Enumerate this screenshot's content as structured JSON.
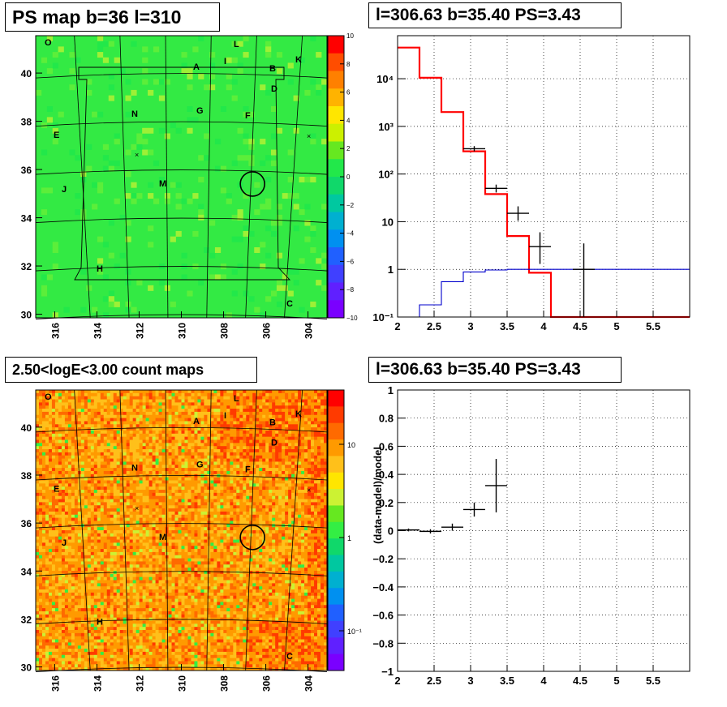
{
  "panels": {
    "top_left_title": "PS map b=36 l=310",
    "top_right_title": "l=306.63 b=35.40 PS=3.43",
    "bottom_left_title": "2.50<logE<3.00 count maps",
    "bottom_right_title": "l=306.63 b=35.40 PS=3.43"
  },
  "chart_data": [
    {
      "type": "heatmap",
      "title": "PS map b=36 l=310",
      "x_ticks": [
        "316",
        "314",
        "312",
        "310",
        "308",
        "306",
        "304"
      ],
      "y_ticks": [
        "30",
        "32",
        "34",
        "36",
        "38",
        "40"
      ],
      "colorbar_ticks": [
        "10",
        "8",
        "6",
        "4",
        "2",
        "0",
        "−2",
        "−4",
        "−6",
        "−8",
        "−10"
      ],
      "colorbar_range": [
        -10,
        10
      ],
      "background_value": 0,
      "region_labels": [
        "O",
        "L",
        "I",
        "A",
        "B",
        "K",
        "D",
        "N",
        "G",
        "F",
        "E",
        "J",
        "M",
        "H",
        "C"
      ],
      "marked_source": {
        "l": 306.63,
        "b": 35.4
      }
    },
    {
      "type": "line",
      "title": "l=306.63 b=35.40 PS=3.43",
      "y_scale": "log",
      "xlim": [
        2,
        6
      ],
      "ylim": [
        0.1,
        80000
      ],
      "x_ticks": [
        "2",
        "2.5",
        "3",
        "3.5",
        "4",
        "4.5",
        "5",
        "5.5"
      ],
      "y_ticks": [
        "10⁻¹",
        "1",
        "10",
        "10²",
        "10³",
        "10⁴"
      ],
      "grid": true,
      "series": [
        {
          "color": "#ff0000",
          "style": "step",
          "edges": [
            2.0,
            2.3,
            2.6,
            2.9,
            3.2,
            3.5,
            3.8,
            4.1,
            4.4,
            4.7,
            5.0,
            5.3,
            5.6,
            5.9,
            6.0
          ],
          "values": [
            45000,
            10500,
            2000,
            300,
            38,
            5,
            0.85,
            0.1,
            0.1,
            0.1,
            0.1,
            0.1,
            0.1,
            0.1
          ]
        },
        {
          "color": "#0000cc",
          "style": "step",
          "edges": [
            2.0,
            2.3,
            2.6,
            2.9,
            3.2,
            3.5,
            3.8,
            4.1,
            4.4,
            4.7,
            5.0,
            5.3,
            5.6,
            5.9,
            6.0
          ],
          "values": [
            0.05,
            0.18,
            0.55,
            0.88,
            0.97,
            1.0,
            1.0,
            1.0,
            1.0,
            1.0,
            1.0,
            1.0,
            1.0,
            1.0
          ]
        },
        {
          "color": "#000000",
          "style": "errorbars",
          "points": [
            {
              "x": 3.05,
              "y": 340,
              "xerr": 0.15,
              "ylo": 300,
              "yhi": 385
            },
            {
              "x": 3.35,
              "y": 50,
              "xerr": 0.15,
              "ylo": 41,
              "yhi": 60
            },
            {
              "x": 3.65,
              "y": 15,
              "xerr": 0.15,
              "ylo": 10.5,
              "yhi": 21
            },
            {
              "x": 3.95,
              "y": 3,
              "xerr": 0.15,
              "ylo": 1.3,
              "yhi": 6
            },
            {
              "x": 4.55,
              "y": 1,
              "xerr": 0.15,
              "ylo": 0.1,
              "yhi": 3.5
            }
          ]
        }
      ]
    },
    {
      "type": "heatmap",
      "title": "2.50<logE<3.00 count maps",
      "x_ticks": [
        "316",
        "314",
        "312",
        "310",
        "308",
        "306",
        "304"
      ],
      "y_ticks": [
        "30",
        "32",
        "34",
        "36",
        "38",
        "40"
      ],
      "colorbar_ticks": [
        "10",
        "1",
        "10⁻¹"
      ],
      "colorbar_scale": "log",
      "region_labels": [
        "O",
        "L",
        "I",
        "A",
        "B",
        "K",
        "D",
        "N",
        "G",
        "F",
        "E",
        "J",
        "M",
        "H",
        "C"
      ],
      "marked_source": {
        "l": 306.63,
        "b": 35.4
      }
    },
    {
      "type": "scatter",
      "title": "l=306.63 b=35.40 PS=3.43",
      "ylabel": "(data-model)/model",
      "xlim": [
        2,
        6
      ],
      "ylim": [
        -1,
        1
      ],
      "x_ticks": [
        "2",
        "2.5",
        "3",
        "3.5",
        "4",
        "4.5",
        "5",
        "5.5"
      ],
      "y_ticks": [
        "−1",
        "−0.8",
        "−0.6",
        "−0.4",
        "−0.2",
        "0",
        "0.2",
        "0.4",
        "0.6",
        "0.8",
        "1"
      ],
      "grid": true,
      "points": [
        {
          "x": 2.15,
          "y": 0.005,
          "xerr": 0.15,
          "yerr": 0.01
        },
        {
          "x": 2.45,
          "y": -0.005,
          "xerr": 0.15,
          "yerr": 0.015
        },
        {
          "x": 2.75,
          "y": 0.025,
          "xerr": 0.15,
          "yerr": 0.025
        },
        {
          "x": 3.05,
          "y": 0.15,
          "xerr": 0.15,
          "yerr": 0.05
        },
        {
          "x": 3.35,
          "y": 0.32,
          "xerr": 0.15,
          "yerr": 0.19
        }
      ]
    }
  ]
}
